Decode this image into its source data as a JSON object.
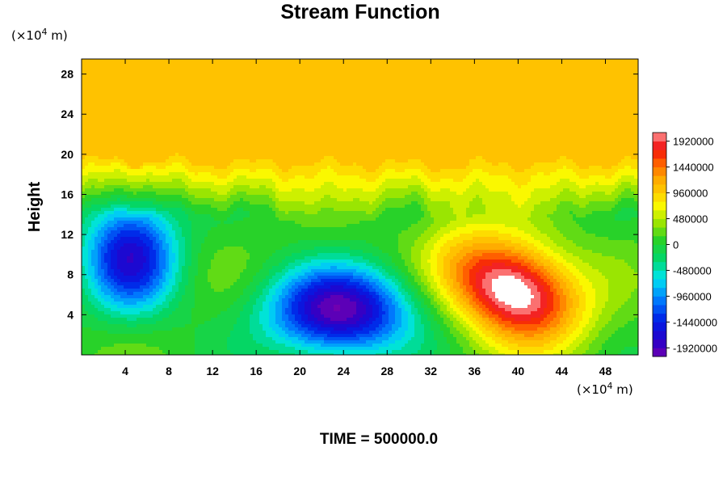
{
  "chart_data": {
    "type": "heatmap",
    "title": "Stream Function",
    "xlabel": "",
    "ylabel": "Height",
    "x_unit_prefix": "(×10",
    "x_unit_exp": "4",
    "x_unit_suffix": " m)",
    "y_unit_prefix": "(×10",
    "y_unit_exp": "4",
    "y_unit_suffix": " m)",
    "xlim": [
      0,
      51
    ],
    "ylim": [
      0,
      29.5
    ],
    "x_ticks": [
      "4",
      "8",
      "12",
      "16",
      "20",
      "24",
      "28",
      "32",
      "36",
      "40",
      "44",
      "48"
    ],
    "x_tick_values": [
      4,
      8,
      12,
      16,
      20,
      24,
      28,
      32,
      36,
      40,
      44,
      48
    ],
    "y_ticks": [
      "4",
      "8",
      "12",
      "16",
      "20",
      "24",
      "28"
    ],
    "y_tick_values": [
      4,
      8,
      12,
      16,
      20,
      24,
      28
    ],
    "colorbar": {
      "min": -2080000,
      "max": 2080000,
      "step": 160000,
      "tick_labels": [
        "1920000",
        "1440000",
        "960000",
        "480000",
        "0",
        "-480000",
        "-960000",
        "-1440000",
        "-1920000"
      ],
      "tick_values": [
        1920000,
        1440000,
        960000,
        480000,
        0,
        -480000,
        -960000,
        -1440000,
        -1920000
      ]
    },
    "background_value": 1000000,
    "features": [
      {
        "kind": "high",
        "x": 39.5,
        "y": 6.5,
        "sx": 4.5,
        "sy": 3.2,
        "rot": -0.55,
        "amp": 2300000
      },
      {
        "kind": "low",
        "x": 4.5,
        "y": 10,
        "sx": 3.0,
        "sy": 4.0,
        "rot": 0,
        "amp": -1750000
      },
      {
        "kind": "low",
        "x": 23.5,
        "y": 4.0,
        "sx": 4.5,
        "sy": 3.0,
        "rot": 0,
        "amp": -1900000
      }
    ],
    "footer": "TIME = 500000.0"
  },
  "colors": {
    "max_fill": "#ffffff",
    "min_fill": "#7000b0"
  }
}
